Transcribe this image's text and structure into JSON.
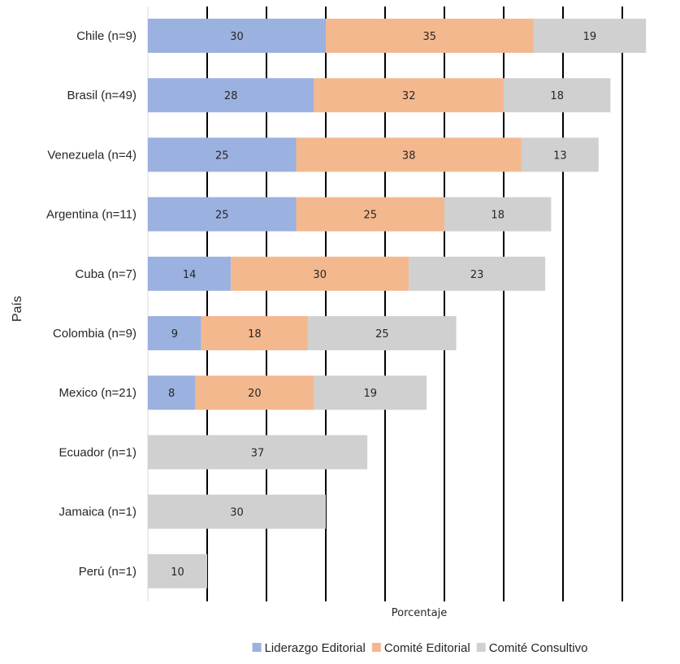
{
  "chart_data": {
    "type": "bar",
    "orientation": "horizontal",
    "stacked": true,
    "categories": [
      "Chile (n=9)",
      "Brasil (n=49)",
      "Venezuela (n=4)",
      "Argentina (n=11)",
      "Cuba (n=7)",
      "Colombia (n=9)",
      "Mexico (n=21)",
      "Ecuador (n=1)",
      "Jamaica (n=1)",
      "Perú (n=1)"
    ],
    "series": [
      {
        "name": "Liderazgo Editorial",
        "color": "#9BB1E0",
        "values": [
          30,
          28,
          25,
          25,
          14,
          9,
          8,
          null,
          null,
          null
        ]
      },
      {
        "name": "Comité Editorial",
        "color": "#F4B88E",
        "values": [
          35,
          32,
          38,
          25,
          30,
          18,
          20,
          null,
          null,
          null
        ]
      },
      {
        "name": "Comité Consultivo",
        "color": "#D0D0D0",
        "values": [
          19,
          18,
          13,
          18,
          23,
          25,
          19,
          37,
          30,
          10
        ]
      }
    ],
    "xlabel": "Porcentaje",
    "ylabel": "País",
    "xlim": [
      0,
      90
    ],
    "grid": true,
    "legend_position": "bottom"
  }
}
